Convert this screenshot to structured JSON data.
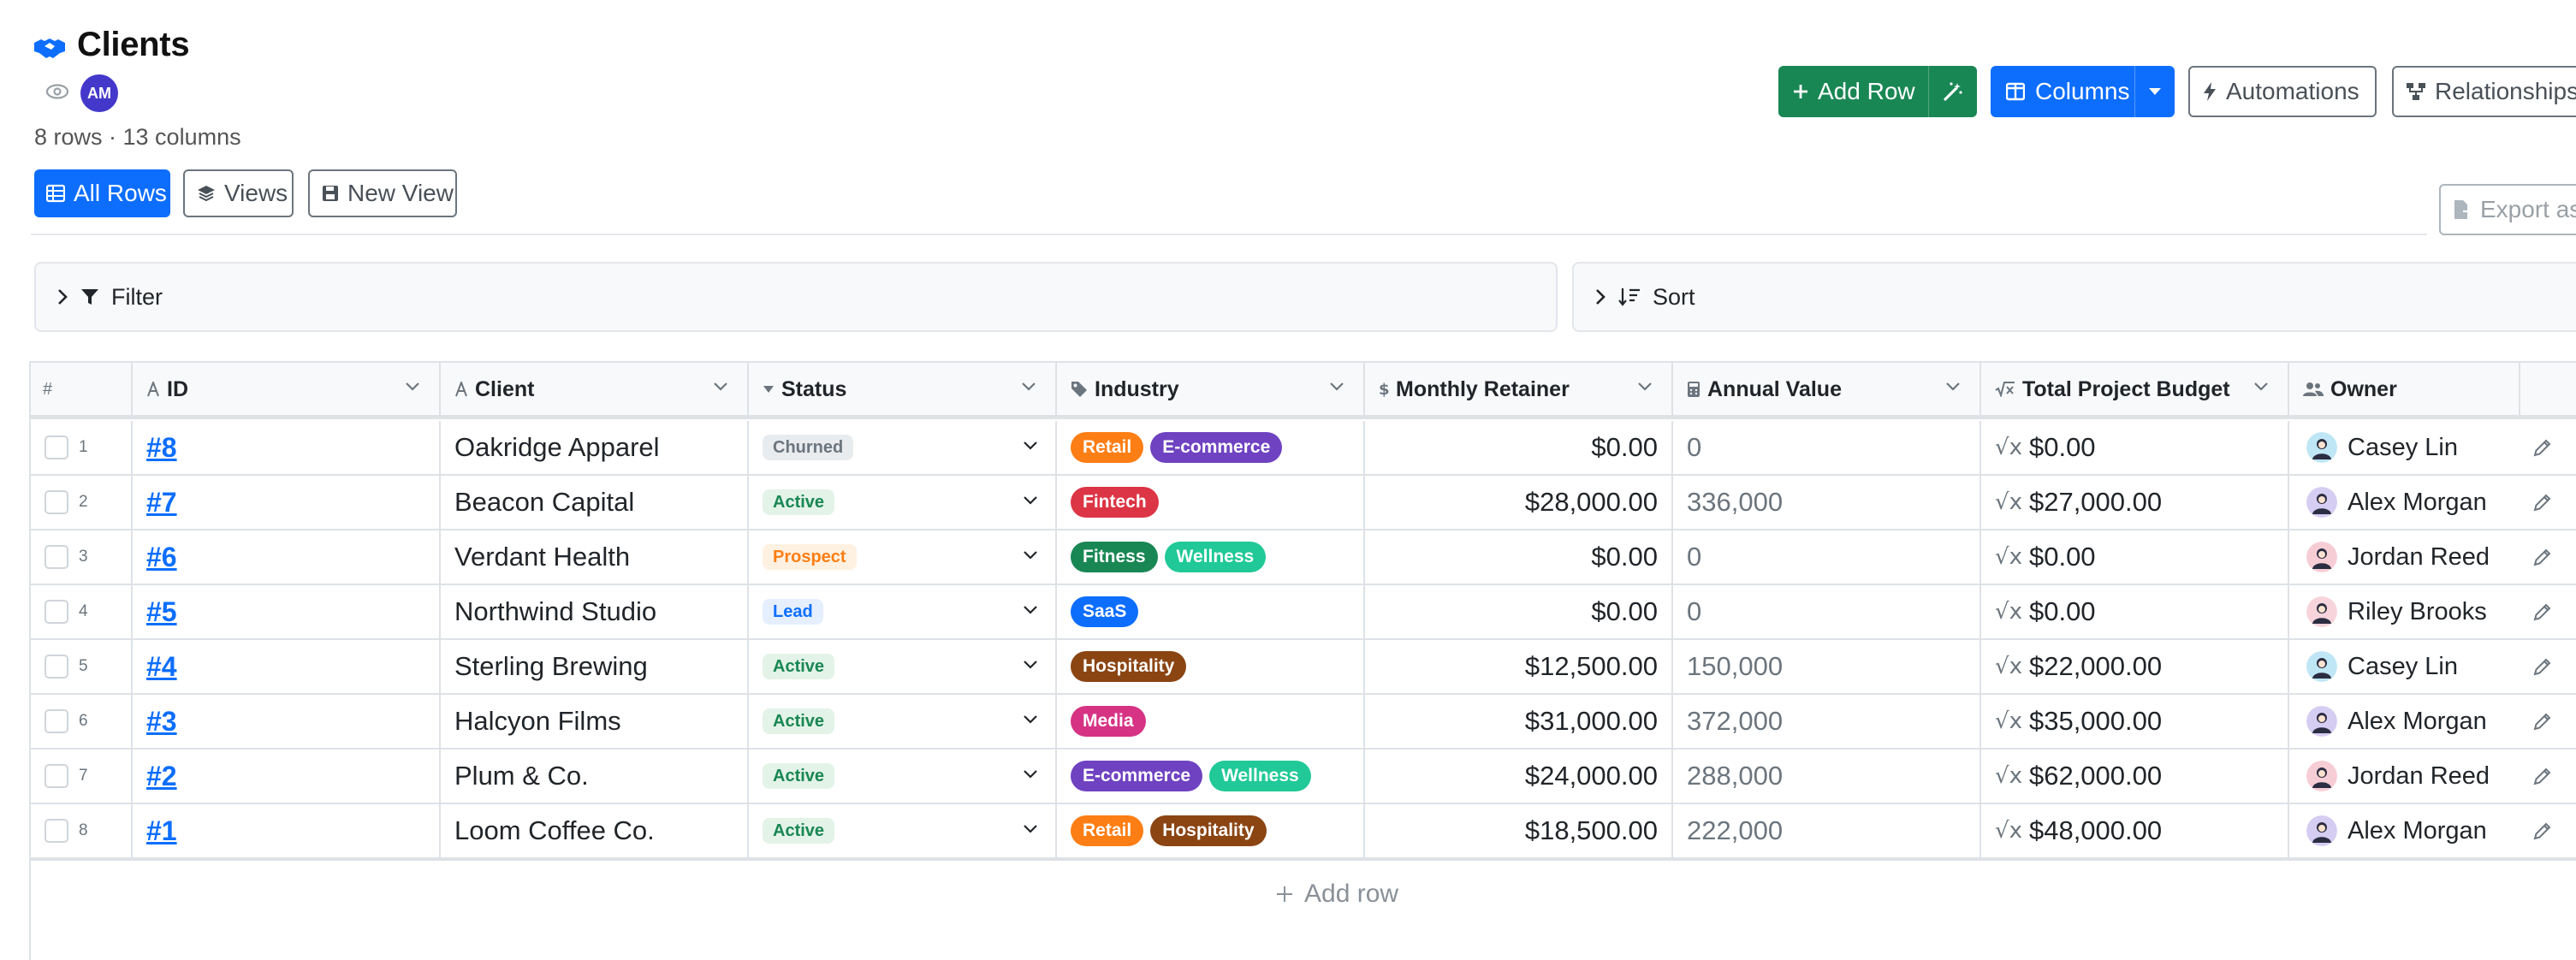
{
  "page": {
    "title": "Clients",
    "owner_initials": "AM",
    "meta": "8 rows · 13 columns"
  },
  "toolbar": {
    "all_rows": "All Rows",
    "views": "Views",
    "new_view": "New View",
    "add_row": "Add Row",
    "columns": "Columns",
    "automations": "Automations",
    "relationships": "Relationships",
    "export": "Export as"
  },
  "filter_label": "Filter",
  "sort_label": "Sort",
  "table": {
    "columns": [
      {
        "label": "#"
      },
      {
        "label": "ID"
      },
      {
        "label": "Client"
      },
      {
        "label": "Status"
      },
      {
        "label": "Industry"
      },
      {
        "label": "Monthly Retainer"
      },
      {
        "label": "Annual Value"
      },
      {
        "label": "Total Project Budget"
      },
      {
        "label": "Owner"
      }
    ],
    "rows": [
      {
        "num": "1",
        "id": "#8",
        "client": "Oakridge Apparel",
        "status": "Churned",
        "industry": [
          "Retail",
          "E-commerce"
        ],
        "retainer": "$0.00",
        "annual": "0",
        "budget": "$0.00",
        "owner": "Casey Lin"
      },
      {
        "num": "2",
        "id": "#7",
        "client": "Beacon Capital",
        "status": "Active",
        "industry": [
          "Fintech"
        ],
        "retainer": "$28,000.00",
        "annual": "336,000",
        "budget": "$27,000.00",
        "owner": "Alex Morgan"
      },
      {
        "num": "3",
        "id": "#6",
        "client": "Verdant Health",
        "status": "Prospect",
        "industry": [
          "Fitness",
          "Wellness"
        ],
        "retainer": "$0.00",
        "annual": "0",
        "budget": "$0.00",
        "owner": "Jordan Reed"
      },
      {
        "num": "4",
        "id": "#5",
        "client": "Northwind Studio",
        "status": "Lead",
        "industry": [
          "SaaS"
        ],
        "retainer": "$0.00",
        "annual": "0",
        "budget": "$0.00",
        "owner": "Riley Brooks"
      },
      {
        "num": "5",
        "id": "#4",
        "client": "Sterling Brewing",
        "status": "Active",
        "industry": [
          "Hospitality"
        ],
        "retainer": "$12,500.00",
        "annual": "150,000",
        "budget": "$22,000.00",
        "owner": "Casey Lin"
      },
      {
        "num": "6",
        "id": "#3",
        "client": "Halcyon Films",
        "status": "Active",
        "industry": [
          "Media"
        ],
        "retainer": "$31,000.00",
        "annual": "372,000",
        "budget": "$35,000.00",
        "owner": "Alex Morgan"
      },
      {
        "num": "7",
        "id": "#2",
        "client": "Plum & Co.",
        "status": "Active",
        "industry": [
          "E-commerce",
          "Wellness"
        ],
        "retainer": "$24,000.00",
        "annual": "288,000",
        "budget": "$62,000.00",
        "owner": "Jordan Reed"
      },
      {
        "num": "8",
        "id": "#1",
        "client": "Loom Coffee Co.",
        "status": "Active",
        "industry": [
          "Retail",
          "Hospitality"
        ],
        "retainer": "$18,500.00",
        "annual": "222,000",
        "budget": "$48,000.00",
        "owner": "Alex Morgan"
      }
    ]
  },
  "add_row_link": "Add row",
  "colors": {
    "status": {
      "Churned": {
        "bg": "#e9ecef",
        "fg": "#6c757d"
      },
      "Active": {
        "bg": "#e3f3e8",
        "fg": "#198754"
      },
      "Prospect": {
        "bg": "#fff1e2",
        "fg": "#fd7e14"
      },
      "Lead": {
        "bg": "#e5efff",
        "fg": "#0d6efd"
      }
    },
    "industry": {
      "Retail": "#fd7e14",
      "E-commerce": "#6f42c1",
      "Fintech": "#dc3545",
      "Fitness": "#198754",
      "Wellness": "#20c997",
      "SaaS": "#0d6efd",
      "Hospitality": "#8b4513",
      "Media": "#d63384"
    },
    "owners": {
      "Casey Lin": "#bfe6f5",
      "Alex Morgan": "#d6cdf2",
      "Jordan Reed": "#f7cdd5",
      "Riley Brooks": "#f7d4dc"
    }
  }
}
